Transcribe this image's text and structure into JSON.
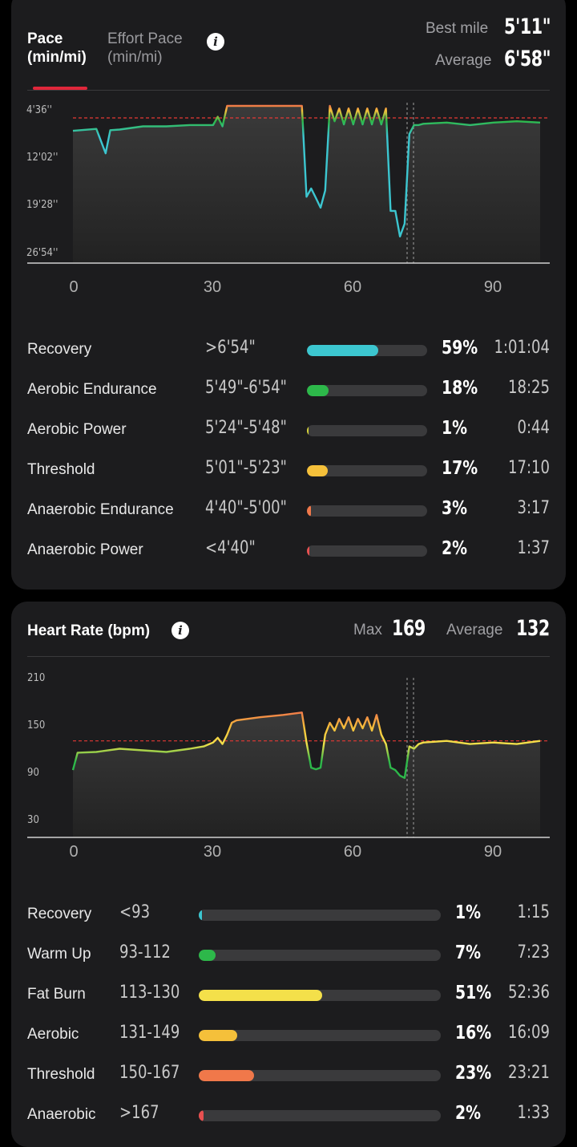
{
  "pace": {
    "tab_active_line1": "Pace",
    "tab_active_line2": "(min/mi)",
    "tab_inactive_line1": "Effort Pace",
    "tab_inactive_line2": "(min/mi)",
    "info_icon": "info-icon",
    "best_label": "Best mile",
    "best_value": "5'11\"",
    "avg_label": "Average",
    "avg_value": "6'58\"",
    "chart": {
      "yticks": [
        "4'36''",
        "12'02''",
        "19'28''",
        "26'54''"
      ],
      "xticks": [
        "0",
        "30",
        "60",
        "90"
      ]
    },
    "zones": [
      {
        "name": "Recovery",
        "range": ">6'54\"",
        "pct": "59%",
        "time": "1:01:04",
        "fraction": 0.59,
        "color": "#3cc6d0"
      },
      {
        "name": "Aerobic Endurance",
        "range": "5'49\"-6'54\"",
        "pct": "18%",
        "time": "18:25",
        "fraction": 0.18,
        "color": "#2db84a"
      },
      {
        "name": "Aerobic Power",
        "range": "5'24\"-5'48\"",
        "pct": "1%",
        "time": "0:44",
        "fraction": 0.01,
        "color": "#d7d43a"
      },
      {
        "name": "Threshold",
        "range": "5'01\"-5'23\"",
        "pct": "17%",
        "time": "17:10",
        "fraction": 0.17,
        "color": "#f5c03a"
      },
      {
        "name": "Anaerobic Endurance",
        "range": "4'40\"-5'00\"",
        "pct": "3%",
        "time": "3:17",
        "fraction": 0.03,
        "color": "#f0784a"
      },
      {
        "name": "Anaerobic Power",
        "range": "<4'40\"",
        "pct": "2%",
        "time": "1:37",
        "fraction": 0.02,
        "color": "#e85050"
      }
    ]
  },
  "heart_rate": {
    "title": "Heart Rate (bpm)",
    "info_icon": "info-icon",
    "max_label": "Max",
    "max_value": "169",
    "avg_label": "Average",
    "avg_value": "132",
    "chart": {
      "yticks": [
        "210",
        "150",
        "90",
        "30"
      ],
      "xticks": [
        "0",
        "30",
        "60",
        "90"
      ]
    },
    "zones": [
      {
        "name": "Recovery",
        "range": "<93",
        "pct": "1%",
        "time": "1:15",
        "fraction": 0.01,
        "color": "#3cc6d0"
      },
      {
        "name": "Warm Up",
        "range": "93-112",
        "pct": "7%",
        "time": "7:23",
        "fraction": 0.07,
        "color": "#2db84a"
      },
      {
        "name": "Fat Burn",
        "range": "113-130",
        "pct": "51%",
        "time": "52:36",
        "fraction": 0.51,
        "color": "#f4e04a"
      },
      {
        "name": "Aerobic",
        "range": "131-149",
        "pct": "16%",
        "time": "16:09",
        "fraction": 0.16,
        "color": "#f5c03a"
      },
      {
        "name": "Threshold",
        "range": "150-167",
        "pct": "23%",
        "time": "23:21",
        "fraction": 0.23,
        "color": "#f0784a"
      },
      {
        "name": "Anaerobic",
        "range": ">167",
        "pct": "2%",
        "time": "1:33",
        "fraction": 0.02,
        "color": "#e85050"
      }
    ]
  },
  "chart_data": [
    {
      "type": "line",
      "xlabel": "",
      "ylabel": "",
      "x_ticks": [
        0,
        30,
        60,
        90
      ],
      "y_ticks": [
        "4'36''",
        "12'02''",
        "19'28''",
        "26'54''"
      ],
      "y_inverted": true,
      "average_line": "6'58\"",
      "series": [
        {
          "x": [
            0,
            5,
            7,
            8,
            10,
            15,
            20,
            25,
            30,
            31,
            32,
            33,
            34,
            35,
            40,
            45,
            49,
            50,
            51,
            52,
            53,
            54,
            55,
            56,
            57,
            58,
            59,
            60,
            61,
            62,
            63,
            64,
            65,
            66,
            67,
            68,
            69,
            70,
            71,
            72,
            73,
            74,
            75,
            80,
            85,
            90,
            95,
            100
          ],
          "y_min": [
            8.5,
            8.2,
            12.0,
            8.4,
            8.3,
            7.8,
            7.8,
            7.6,
            7.6,
            6.3,
            7.8,
            4.6,
            4.6,
            4.6,
            4.6,
            4.6,
            4.6,
            18.8,
            17.5,
            19.0,
            20.5,
            17.8,
            4.6,
            7.0,
            5.0,
            7.5,
            5.0,
            7.5,
            5.0,
            7.5,
            5.0,
            7.5,
            5.0,
            7.5,
            5.0,
            21.0,
            21.0,
            25.0,
            23.0,
            9.0,
            7.6,
            7.6,
            7.4,
            7.2,
            7.6,
            7.2,
            7.0,
            7.2
          ],
          "note": "minutes per mile, approximate"
        }
      ]
    },
    {
      "type": "line",
      "xlabel": "",
      "ylabel": "",
      "x_ticks": [
        0,
        30,
        60,
        90
      ],
      "y_ticks": [
        210,
        150,
        90,
        30
      ],
      "average_line": 132,
      "series": [
        {
          "x": [
            0,
            1,
            5,
            10,
            15,
            20,
            25,
            28,
            30,
            31,
            32,
            33,
            34,
            35,
            40,
            45,
            49,
            50,
            51,
            52,
            53,
            54,
            55,
            56,
            57,
            58,
            59,
            60,
            61,
            62,
            63,
            64,
            65,
            66,
            67,
            68,
            69,
            70,
            71,
            72,
            73,
            74,
            75,
            80,
            85,
            90,
            95,
            100
          ],
          "y": [
            95,
            117,
            118,
            122,
            120,
            118,
            122,
            125,
            130,
            136,
            128,
            140,
            155,
            158,
            162,
            165,
            168,
            130,
            98,
            96,
            98,
            140,
            155,
            145,
            160,
            148,
            162,
            145,
            160,
            148,
            162,
            145,
            165,
            140,
            128,
            98,
            95,
            88,
            85,
            125,
            122,
            128,
            130,
            132,
            128,
            130,
            128,
            132
          ]
        }
      ]
    }
  ]
}
